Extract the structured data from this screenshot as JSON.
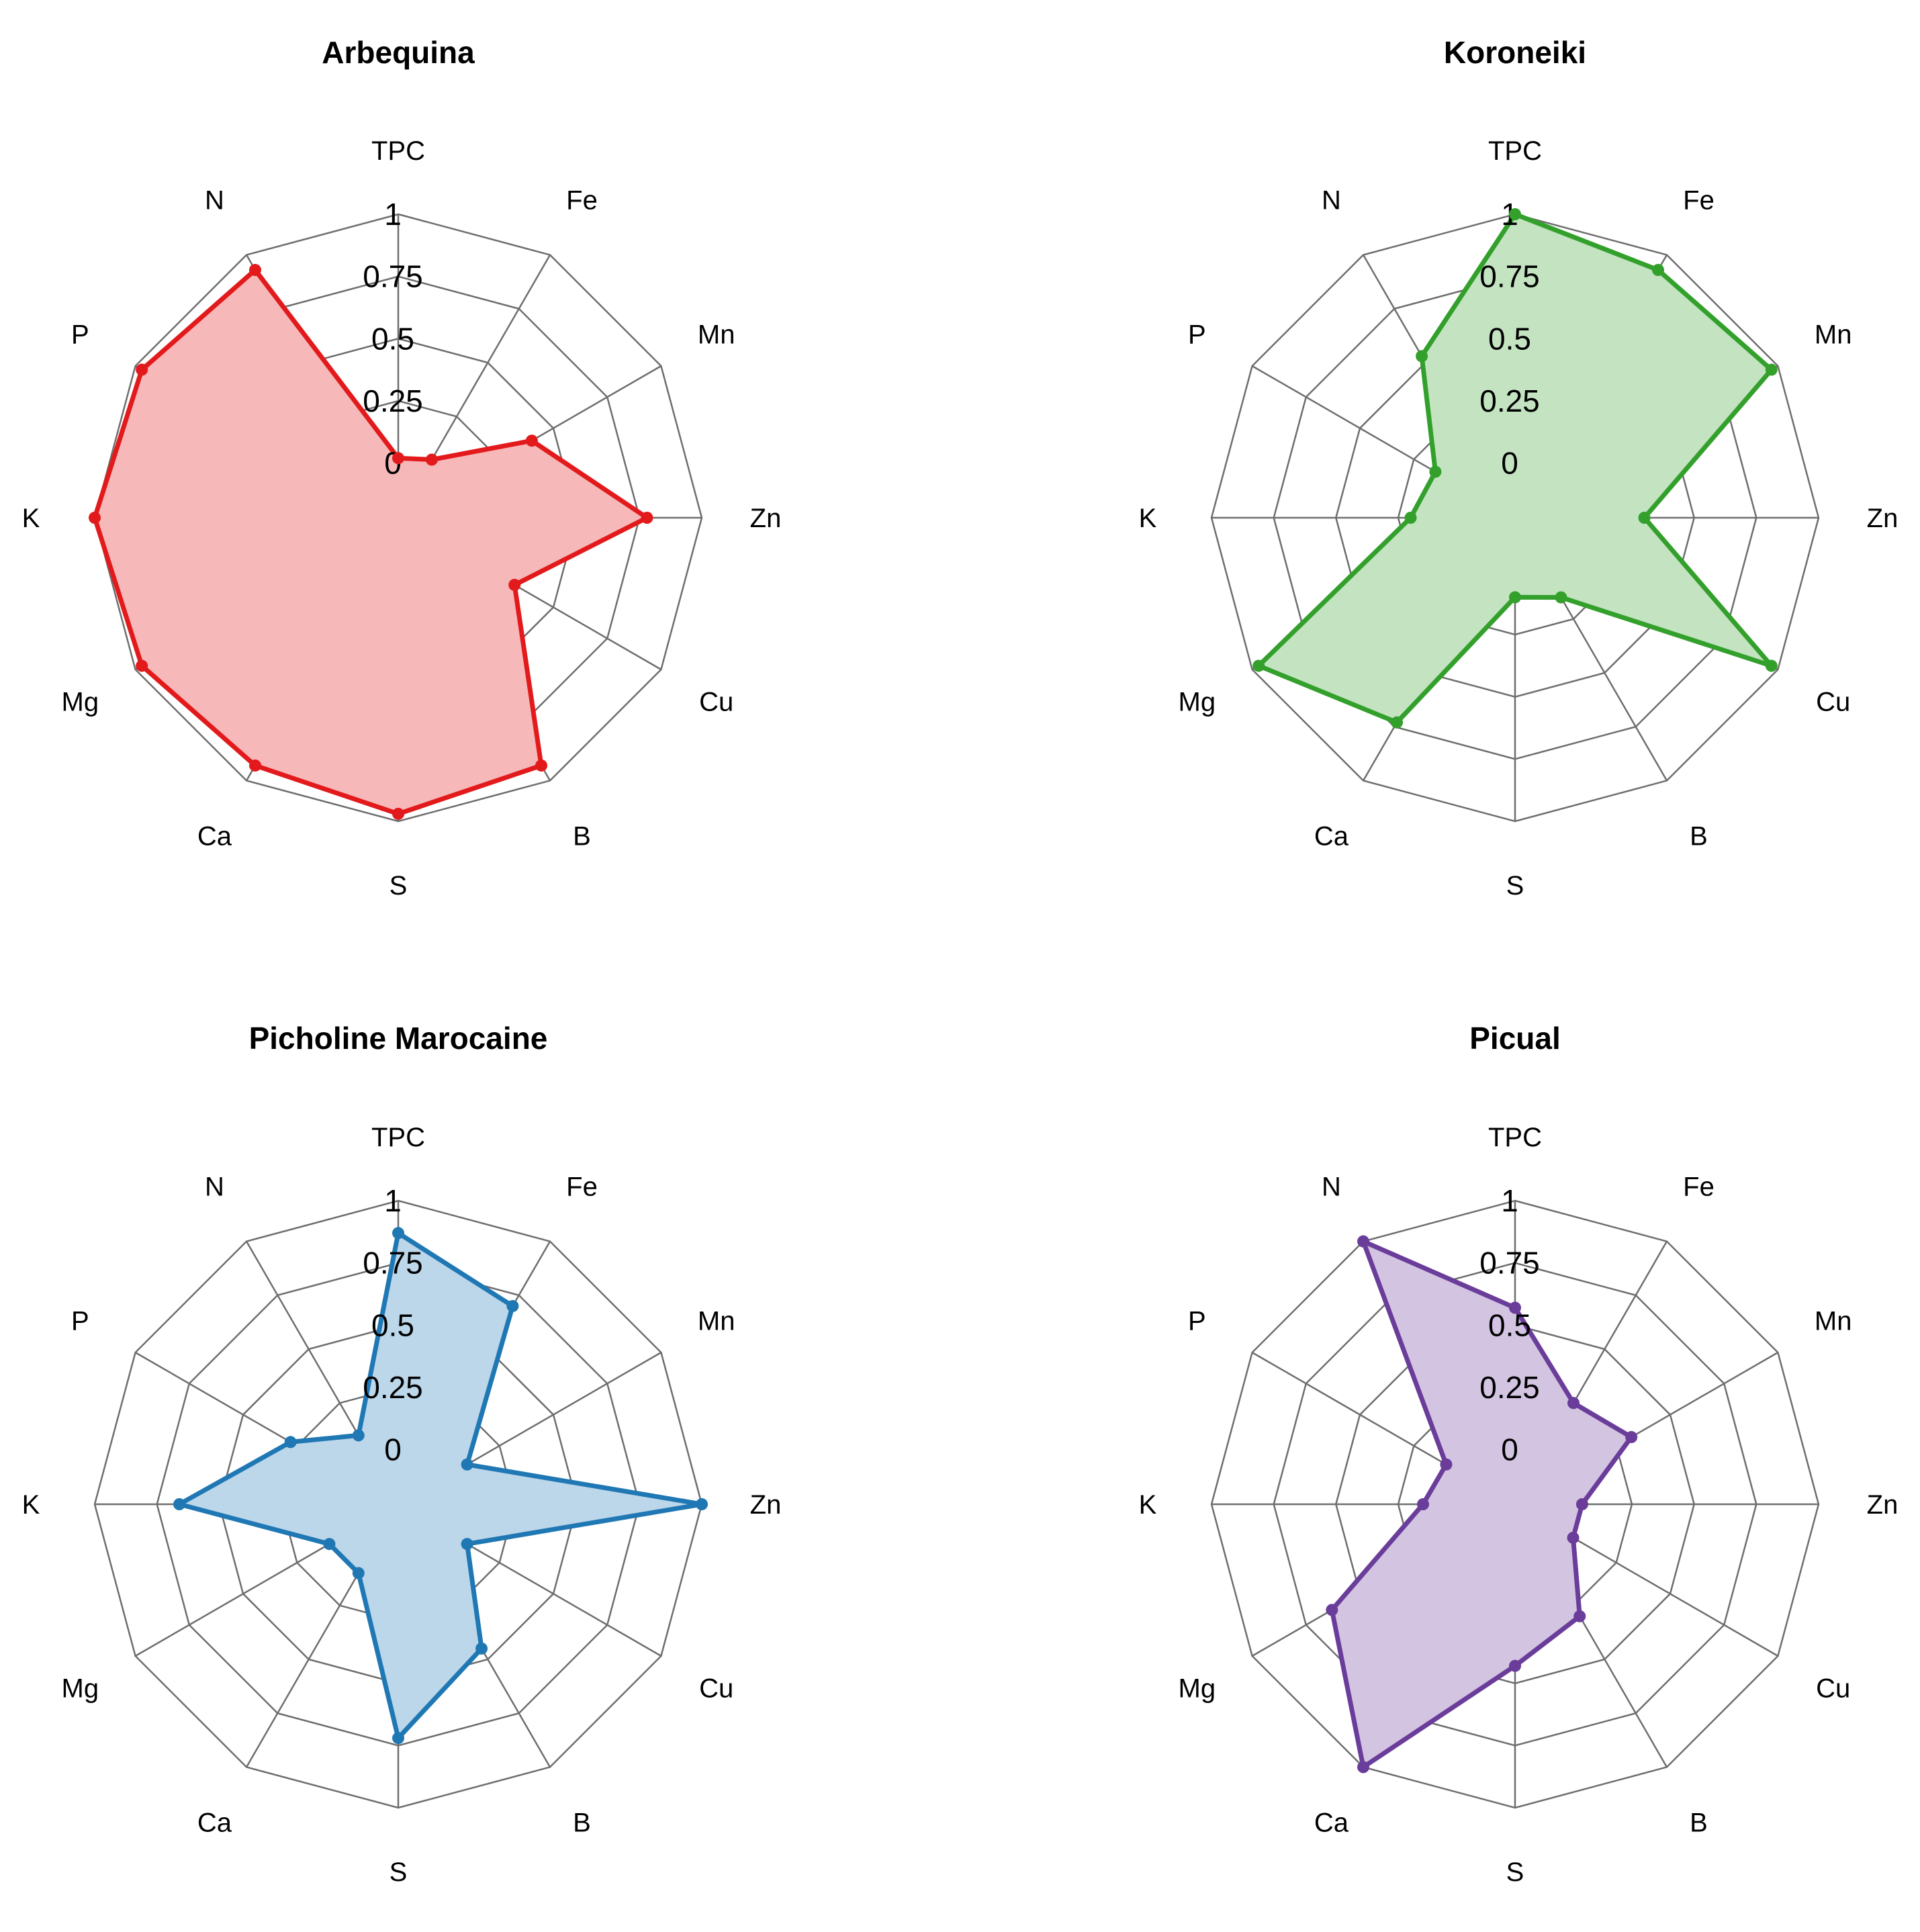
{
  "chart_data": [
    {
      "type": "radar",
      "title": "Arbequina",
      "color": "#e31a1c",
      "fill": "#f6b8b9",
      "axes": [
        "TPC",
        "Fe",
        "Mn",
        "Zn",
        "Cu",
        "B",
        "S",
        "Ca",
        "Mg",
        "K",
        "P",
        "N"
      ],
      "values": [
        0.02,
        0.05,
        0.4,
        0.78,
        0.32,
        0.93,
        0.97,
        0.93,
        0.97,
        1.0,
        0.97,
        0.93
      ],
      "ticks": [
        "0",
        "0.25",
        "0.5",
        "0.75",
        "1"
      ],
      "rlim": [
        0,
        1
      ]
    },
    {
      "type": "radar",
      "title": "Koroneiki",
      "color": "#33a02c",
      "fill": "#c3e3c1",
      "axes": [
        "TPC",
        "Fe",
        "Mn",
        "Zn",
        "Cu",
        "B",
        "S",
        "Ca",
        "Mg",
        "K",
        "P",
        "N"
      ],
      "values": [
        1.0,
        0.93,
        0.97,
        0.3,
        0.97,
        0.15,
        0.1,
        0.73,
        0.97,
        0.2,
        0.15,
        0.53
      ],
      "ticks": [
        "0",
        "0.25",
        "0.5",
        "0.75",
        "1"
      ],
      "rlim": [
        0,
        1
      ]
    },
    {
      "type": "radar",
      "title": "Picholine Marocaine",
      "color": "#1f78b4",
      "fill": "#bcd6ea",
      "axes": [
        "TPC",
        "Fe",
        "Mn",
        "Zn",
        "Cu",
        "B",
        "S",
        "Ca",
        "Mg",
        "K",
        "P",
        "N"
      ],
      "values": [
        0.87,
        0.7,
        0.1,
        1.0,
        0.1,
        0.45,
        0.72,
        0.1,
        0.1,
        0.66,
        0.28,
        0.1
      ],
      "ticks": [
        "0",
        "0.25",
        "0.5",
        "0.75",
        "1"
      ],
      "rlim": [
        0,
        1
      ]
    },
    {
      "type": "radar",
      "title": "Picual",
      "color": "#6a3d9a",
      "fill": "#d3c4e2",
      "axes": [
        "TPC",
        "Fe",
        "Mn",
        "Zn",
        "Cu",
        "B",
        "S",
        "Ca",
        "Mg",
        "K",
        "P",
        "N"
      ],
      "values": [
        0.57,
        0.25,
        0.32,
        0.05,
        0.05,
        0.3,
        0.43,
        1.0,
        0.63,
        0.15,
        0.1,
        1.0
      ],
      "ticks": [
        "0",
        "0.25",
        "0.5",
        "0.75",
        "1"
      ],
      "rlim": [
        0,
        1
      ]
    }
  ]
}
